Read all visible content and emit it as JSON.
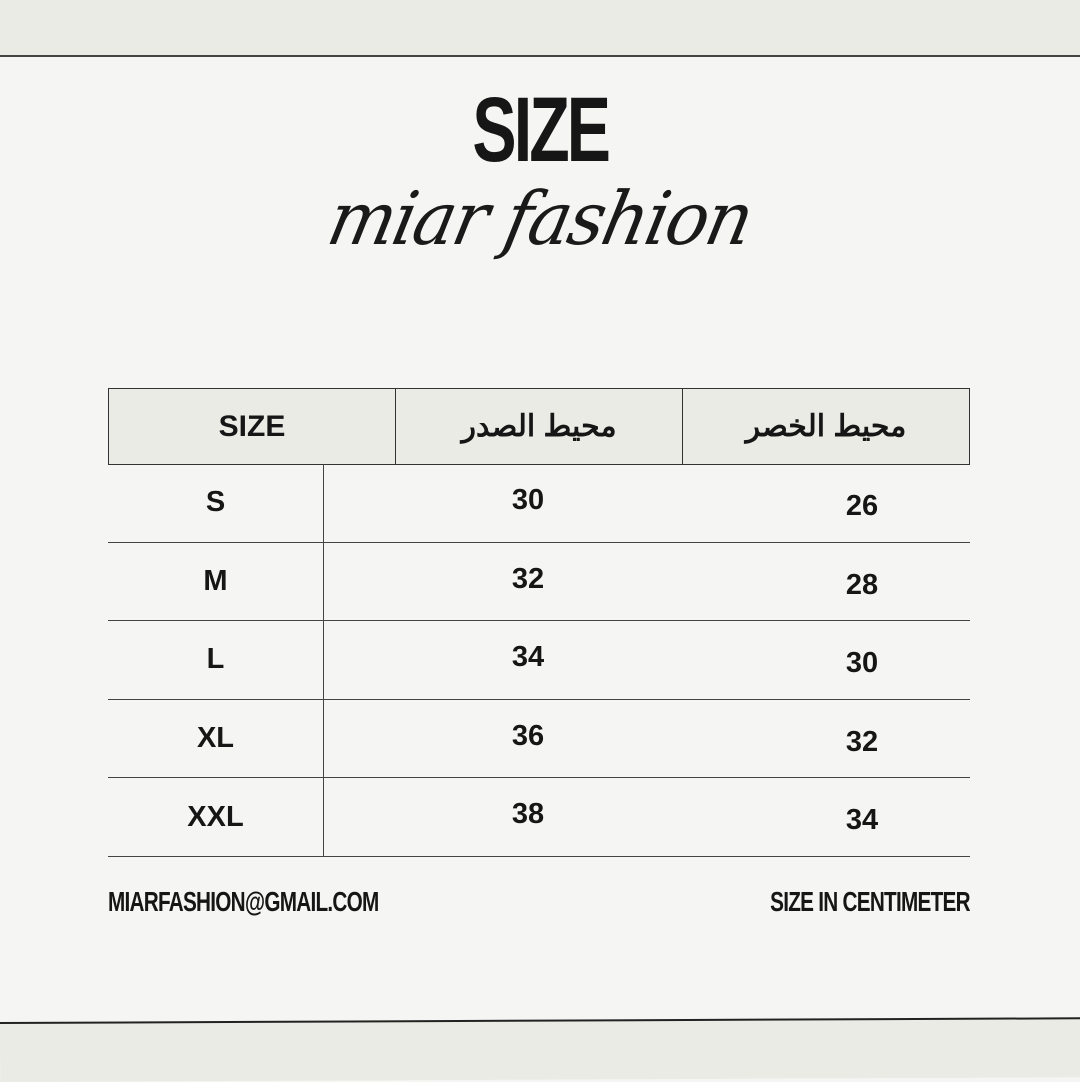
{
  "header": {
    "title": "SIZE",
    "brand": "miar fashion"
  },
  "table": {
    "columns": [
      "SIZE",
      "محيط الصدر",
      "محيط الخصر"
    ],
    "rows": [
      {
        "size": "S",
        "bust": "30",
        "waist": "26"
      },
      {
        "size": "M",
        "bust": "32",
        "waist": "28"
      },
      {
        "size": "L",
        "bust": "34",
        "waist": "30"
      },
      {
        "size": "XL",
        "bust": "36",
        "waist": "32"
      },
      {
        "size": "XXL",
        "bust": "38",
        "waist": "34"
      }
    ]
  },
  "footer": {
    "email": "MIARFASHION@GMAIL.COM",
    "note": "SIZE IN CENTIMETER"
  },
  "colors": {
    "background": "#f5f5f3",
    "band": "#ebebe5",
    "text": "#161616"
  }
}
